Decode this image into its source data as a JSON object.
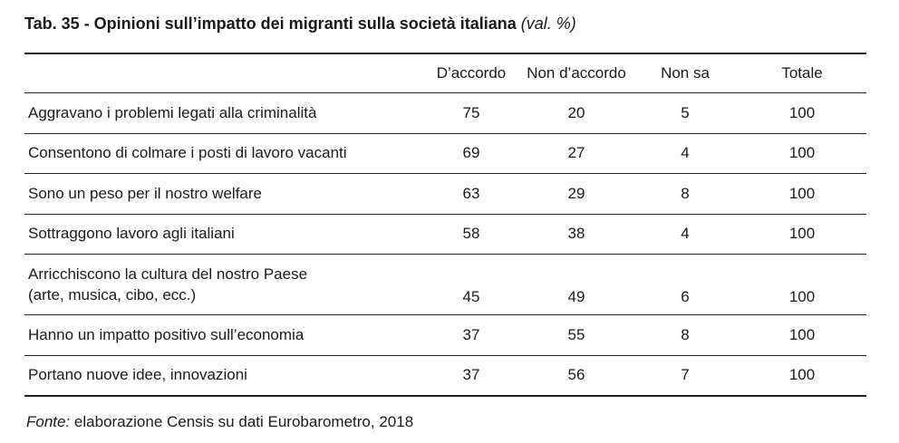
{
  "title": {
    "main": "Tab. 35 - Opinioni sull’impatto dei migranti sulla società italiana",
    "unit": "(val. %)"
  },
  "chart_data": {
    "type": "table",
    "columns": [
      "",
      "D’accordo",
      "Non d’accordo",
      "Non sa",
      "Totale"
    ],
    "rows": [
      {
        "label": [
          "Aggravano i problemi legati alla criminalità"
        ],
        "values": [
          "75",
          "20",
          "5",
          "100"
        ]
      },
      {
        "label": [
          "Consentono di colmare i posti di lavoro vacanti"
        ],
        "values": [
          "69",
          "27",
          "4",
          "100"
        ]
      },
      {
        "label": [
          "Sono un peso per il nostro welfare"
        ],
        "values": [
          "63",
          "29",
          "8",
          "100"
        ]
      },
      {
        "label": [
          "Sottraggono lavoro agli italiani"
        ],
        "values": [
          "58",
          "38",
          "4",
          "100"
        ]
      },
      {
        "label": [
          "Arricchiscono la cultura del nostro Paese",
          "(arte, musica, cibo, ecc.)"
        ],
        "values": [
          "45",
          "49",
          "6",
          "100"
        ]
      },
      {
        "label": [
          "Hanno un impatto positivo sull’economia"
        ],
        "values": [
          "37",
          "55",
          "8",
          "100"
        ]
      },
      {
        "label": [
          "Portano nuove idee, innovazioni"
        ],
        "values": [
          "37",
          "56",
          "7",
          "100"
        ]
      }
    ]
  },
  "source": {
    "label": "Fonte:",
    "text": " elaborazione Censis su dati Eurobarometro, 2018"
  }
}
